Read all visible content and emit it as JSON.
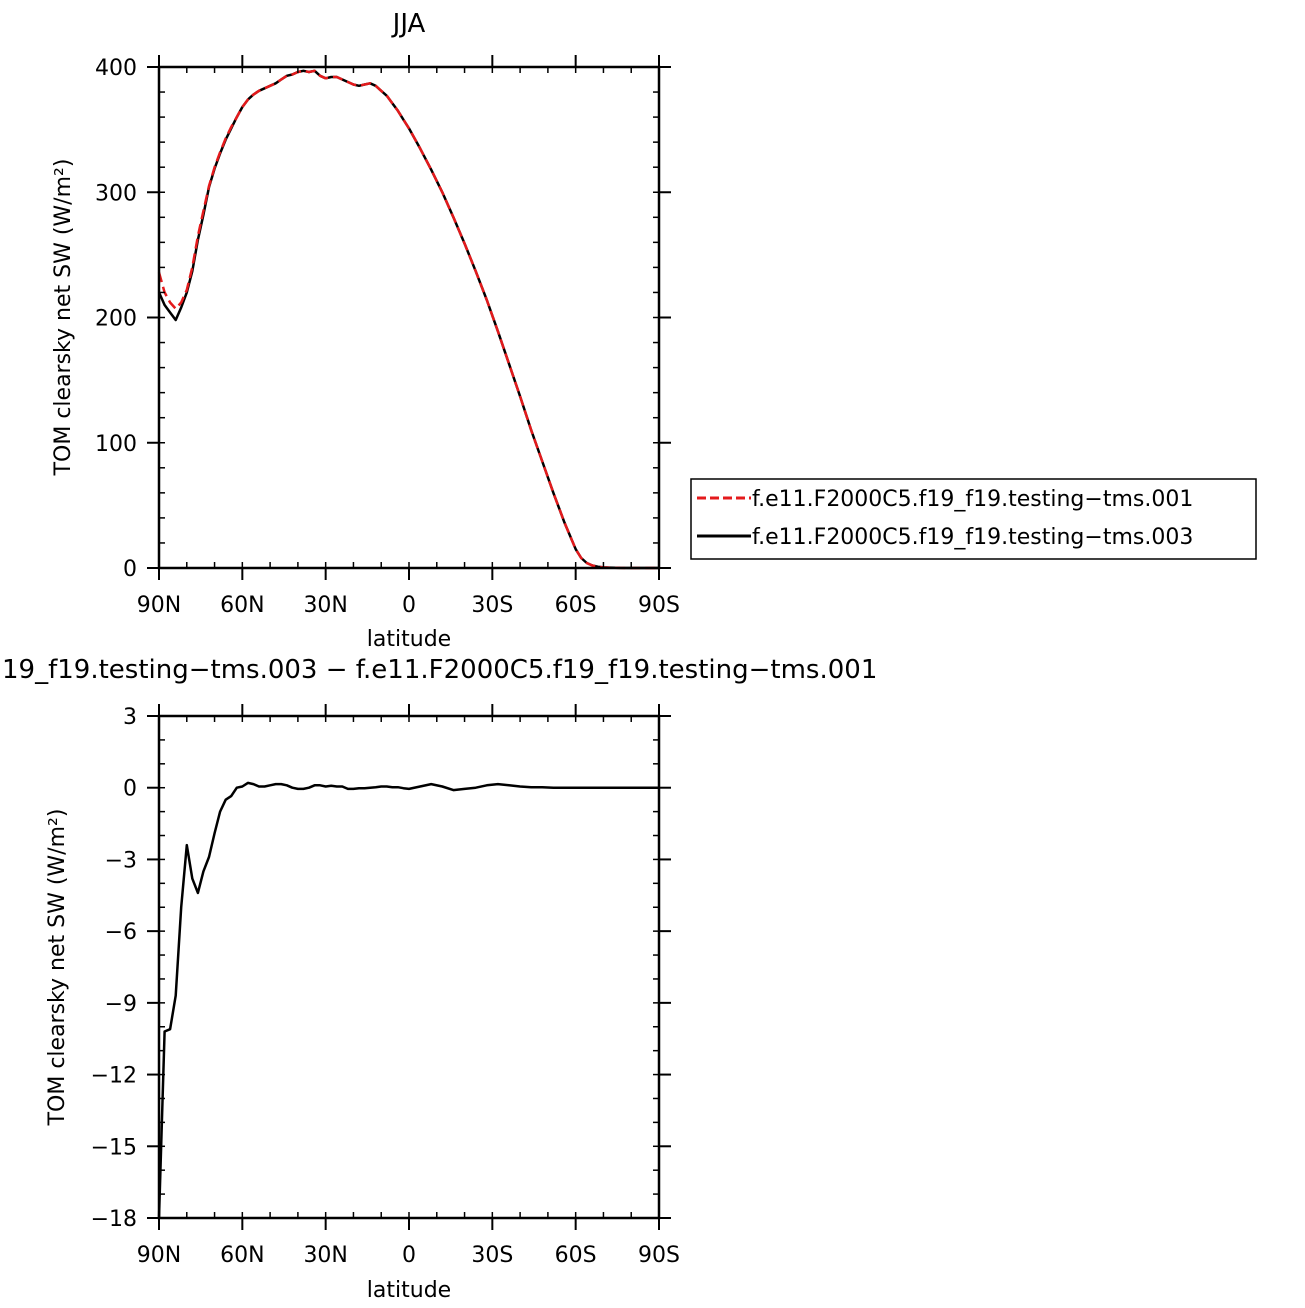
{
  "chart_data": [
    {
      "type": "line",
      "title": "JJA",
      "xlabel": "latitude",
      "ylabel": "TOM clearsky net SW (W/m²)",
      "xlim": [
        90,
        -90
      ],
      "ylim": [
        0,
        400
      ],
      "x_ticks": [
        {
          "value": 90,
          "label": "90N"
        },
        {
          "value": 60,
          "label": "60N"
        },
        {
          "value": 30,
          "label": "30N"
        },
        {
          "value": 0,
          "label": "0"
        },
        {
          "value": -30,
          "label": "30S"
        },
        {
          "value": -60,
          "label": "60S"
        },
        {
          "value": -90,
          "label": "90S"
        }
      ],
      "y_ticks": [
        {
          "value": 0,
          "label": "0"
        },
        {
          "value": 100,
          "label": "100"
        },
        {
          "value": 200,
          "label": "200"
        },
        {
          "value": 300,
          "label": "300"
        },
        {
          "value": 400,
          "label": "400"
        }
      ],
      "legend_position": "right",
      "series": [
        {
          "name": "f.e11.F2000C5.f19_f19.testing−tms.001",
          "color": "#e41a1c",
          "dash": "dashed",
          "x": [
            90,
            88,
            86,
            84,
            82,
            80,
            78,
            76,
            74,
            72,
            70,
            68,
            66,
            64,
            62,
            60,
            58,
            56,
            54,
            52,
            50,
            48,
            46,
            44,
            42,
            40,
            38,
            36,
            34,
            32,
            30,
            28,
            26,
            24,
            22,
            20,
            18,
            16,
            14,
            12,
            10,
            8,
            6,
            4,
            2,
            0,
            -4,
            -8,
            -12,
            -16,
            -20,
            -24,
            -28,
            -32,
            -36,
            -40,
            -44,
            -48,
            -52,
            -56,
            -60,
            -62,
            -64,
            -66,
            -68,
            -70,
            -72,
            -74,
            -76,
            -80,
            -84,
            -88,
            -90
          ],
          "y": [
            236,
            220,
            212,
            207,
            212,
            222,
            240,
            265,
            285,
            305,
            320,
            332,
            343,
            352,
            360,
            368,
            374,
            378,
            381,
            383,
            385,
            387,
            390,
            393,
            394,
            396,
            397,
            396,
            397,
            393,
            391,
            392,
            392,
            390,
            388,
            386,
            385,
            386,
            387,
            385,
            381,
            377,
            371,
            365,
            358,
            351,
            335,
            318,
            300,
            280,
            259,
            237,
            214,
            189,
            163,
            137,
            110,
            85,
            60,
            36,
            15,
            8,
            4,
            2,
            1,
            0.5,
            0.3,
            0.2,
            0.1,
            0,
            0,
            0,
            0
          ]
        },
        {
          "name": "f.e11.F2000C5.f19_f19.testing−tms.003",
          "color": "#000000",
          "dash": "solid",
          "x": [
            90,
            88,
            86,
            84,
            82,
            80,
            78,
            76,
            74,
            72,
            70,
            68,
            66,
            64,
            62,
            60,
            58,
            56,
            54,
            52,
            50,
            48,
            46,
            44,
            42,
            40,
            38,
            36,
            34,
            32,
            30,
            28,
            26,
            24,
            22,
            20,
            18,
            16,
            14,
            12,
            10,
            8,
            6,
            4,
            2,
            0,
            -4,
            -8,
            -12,
            -16,
            -20,
            -24,
            -28,
            -32,
            -36,
            -40,
            -44,
            -48,
            -52,
            -56,
            -60,
            -62,
            -64,
            -66,
            -68,
            -70,
            -72,
            -74,
            -76,
            -80,
            -84,
            -88,
            -90
          ],
          "y": [
            220,
            210,
            204,
            198,
            208,
            220,
            237,
            262,
            282,
            304,
            319,
            331,
            342,
            351,
            360,
            368,
            374,
            378,
            381,
            383,
            385,
            387,
            390,
            393,
            394,
            396,
            397,
            396,
            397,
            393,
            391,
            392,
            392,
            390,
            388,
            386,
            385,
            386,
            387,
            385,
            381,
            377,
            371,
            365,
            358,
            351,
            335,
            318,
            300,
            280,
            259,
            237,
            214,
            189,
            163,
            137,
            110,
            85,
            60,
            36,
            15,
            8,
            4,
            2,
            1,
            0.5,
            0.3,
            0.2,
            0.1,
            0,
            0,
            0,
            0
          ]
        }
      ]
    },
    {
      "type": "line",
      "title": "19_f19.testing−tms.003 − f.e11.F2000C5.f19_f19.testing−tms.001",
      "xlabel": "latitude",
      "ylabel": "TOM clearsky net SW (W/m²)",
      "xlim": [
        90,
        -90
      ],
      "ylim": [
        -18,
        3
      ],
      "x_ticks": [
        {
          "value": 90,
          "label": "90N"
        },
        {
          "value": 60,
          "label": "60N"
        },
        {
          "value": 30,
          "label": "30N"
        },
        {
          "value": 0,
          "label": "0"
        },
        {
          "value": -30,
          "label": "30S"
        },
        {
          "value": -60,
          "label": "60S"
        },
        {
          "value": -90,
          "label": "90S"
        }
      ],
      "y_ticks": [
        {
          "value": 3,
          "label": "3"
        },
        {
          "value": 0,
          "label": "0"
        },
        {
          "value": -3,
          "label": "−3"
        },
        {
          "value": -6,
          "label": "−6"
        },
        {
          "value": -9,
          "label": "−9"
        },
        {
          "value": -12,
          "label": "−12"
        },
        {
          "value": -15,
          "label": "−15"
        },
        {
          "value": -18,
          "label": "−18"
        }
      ],
      "series": [
        {
          "color": "#000000",
          "dash": "solid",
          "x": [
            90,
            88,
            86,
            84,
            82,
            80,
            78,
            76,
            74,
            72,
            70,
            68,
            66,
            64,
            62,
            60,
            58,
            56,
            54,
            52,
            50,
            48,
            46,
            44,
            42,
            40,
            38,
            36,
            34,
            32,
            30,
            28,
            26,
            24,
            22,
            20,
            18,
            16,
            14,
            12,
            10,
            8,
            6,
            4,
            2,
            0,
            -4,
            -8,
            -12,
            -16,
            -20,
            -24,
            -28,
            -32,
            -36,
            -40,
            -44,
            -48,
            -52,
            -56,
            -60,
            -64,
            -68,
            -72,
            -76,
            -80,
            -84,
            -88,
            -90
          ],
          "y": [
            -18,
            -10.2,
            -10.1,
            -8.7,
            -5,
            -2.4,
            -3.8,
            -4.4,
            -3.5,
            -2.9,
            -1.9,
            -1,
            -0.5,
            -0.35,
            0,
            0.05,
            0.2,
            0.15,
            0.05,
            0.05,
            0.1,
            0.15,
            0.15,
            0.1,
            0,
            -0.05,
            -0.05,
            0,
            0.1,
            0.1,
            0.05,
            0.08,
            0.05,
            0.05,
            -0.05,
            -0.05,
            -0.02,
            -0.02,
            0,
            0.02,
            0.05,
            0.05,
            0.02,
            0.02,
            -0.02,
            -0.05,
            0.05,
            0.15,
            0.05,
            -0.1,
            -0.05,
            0,
            0.1,
            0.15,
            0.1,
            0.05,
            0.02,
            0.02,
            0,
            0,
            0,
            0,
            0,
            0,
            0,
            0,
            0,
            0,
            0
          ]
        }
      ]
    }
  ]
}
